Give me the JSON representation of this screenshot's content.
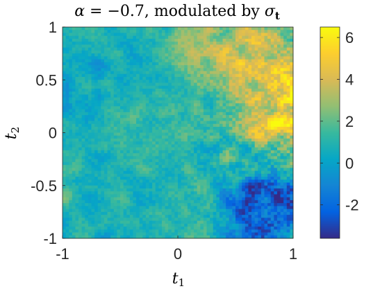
{
  "chart_data": {
    "type": "heatmap",
    "title_parts": {
      "lhs": "α",
      "op": " = −0.7, modulated by ",
      "sym": "σ",
      "sub": "t"
    },
    "xlabel": {
      "base": "t",
      "sub": "1"
    },
    "ylabel": {
      "base": "t",
      "sub": "2"
    },
    "xlim": [
      -1,
      1
    ],
    "ylim": [
      -1,
      1
    ],
    "x_ticks": [
      -1,
      0,
      1
    ],
    "x_tick_labels": [
      "-1",
      "0",
      "1"
    ],
    "y_ticks": [
      1,
      0.5,
      0,
      -0.5,
      -1
    ],
    "y_tick_labels": [
      "1",
      "0.5",
      "0",
      "-0.5",
      "-1"
    ],
    "colorbar": {
      "range": [
        -3.6,
        6.5
      ],
      "ticks": [
        6,
        4,
        2,
        0,
        -2
      ],
      "tick_labels": [
        "6",
        "4",
        "2",
        "0",
        "-2"
      ],
      "colormap": "parula",
      "colors": [
        "#352a87",
        "#0363e1",
        "#1485d4",
        "#06a7c6",
        "#38b99e",
        "#92bf73",
        "#d9ba56",
        "#fcce2e",
        "#f9fb0e"
      ]
    },
    "description_points": [
      {
        "t1": -0.8,
        "t2": 0.5,
        "value": 0.3
      },
      {
        "t1": -0.2,
        "t2": 0.0,
        "value": 1.2
      },
      {
        "t1": 0.65,
        "t2": 0.7,
        "value": 5.2
      },
      {
        "t1": 0.85,
        "t2": 0.3,
        "value": 4.6
      },
      {
        "t1": 0.8,
        "t2": -0.75,
        "value": -2.6
      },
      {
        "t1": 0.3,
        "t2": 0.8,
        "value": 3.0
      }
    ]
  }
}
